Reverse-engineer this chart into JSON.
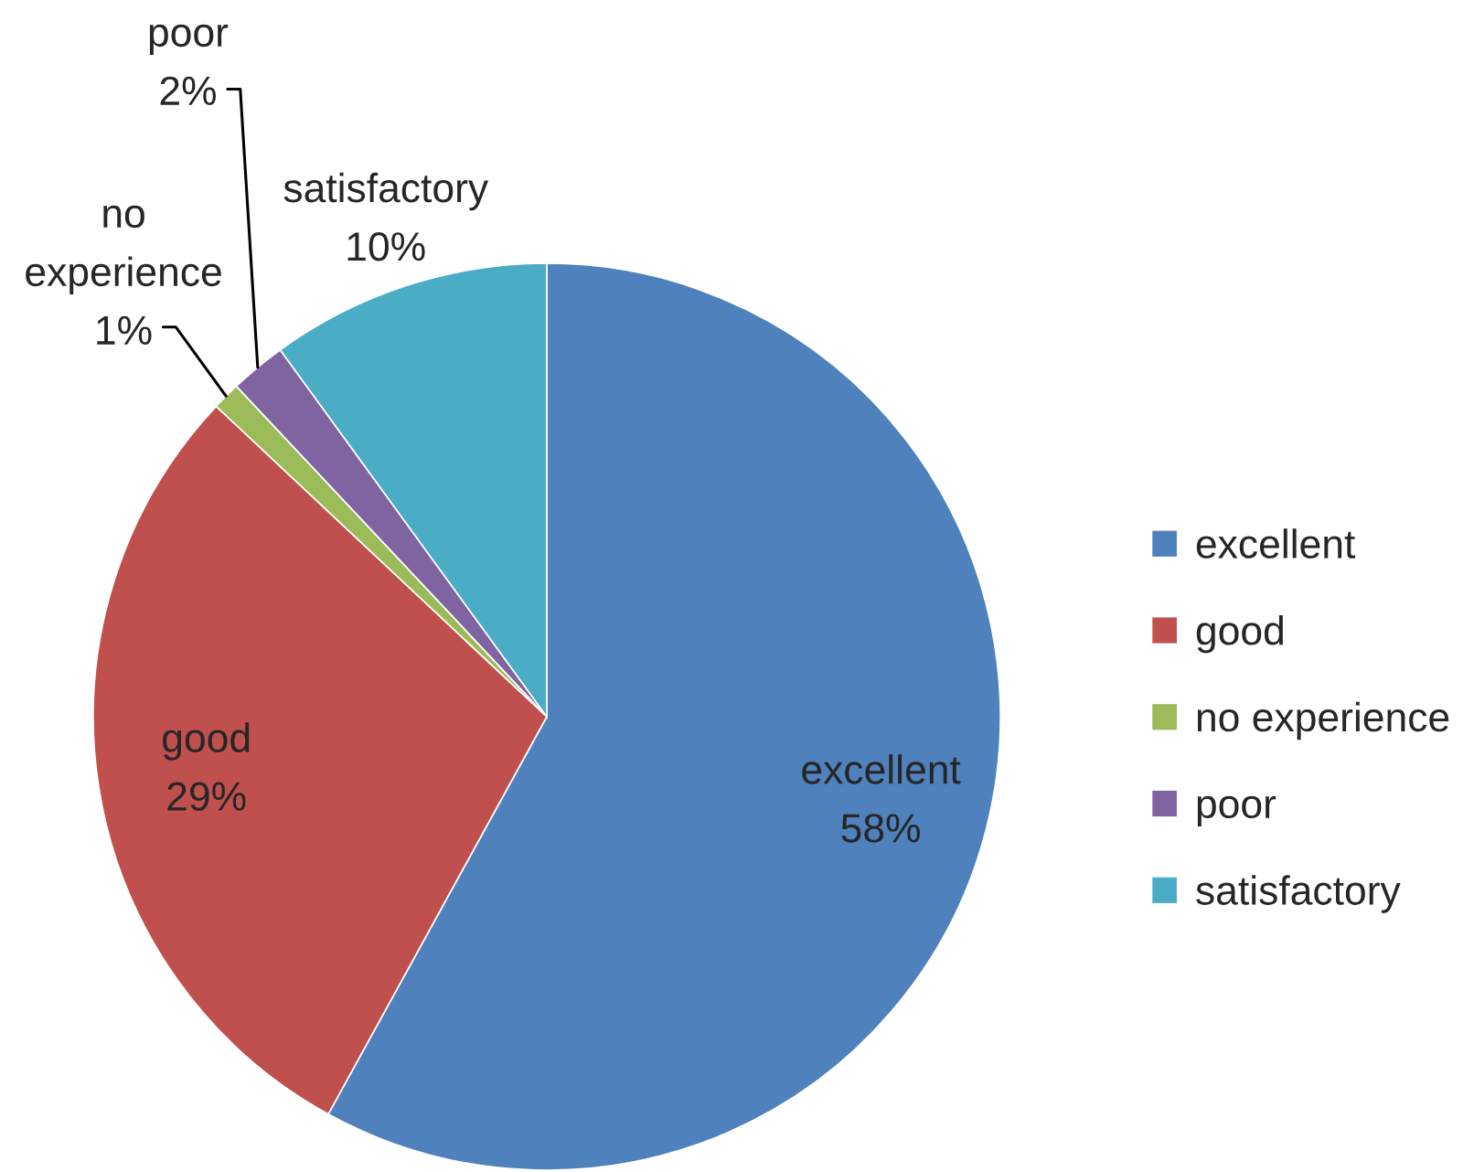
{
  "chart_data": {
    "type": "pie",
    "categories": [
      "excellent",
      "good",
      "no experience",
      "poor",
      "satisfactory"
    ],
    "values": [
      58,
      29,
      1,
      2,
      10
    ],
    "value_labels": [
      "58%",
      "29%",
      "1%",
      "2%",
      "10%"
    ],
    "colors": [
      "#4f81bd",
      "#c0504d",
      "#9bbb59",
      "#8064a2",
      "#4bacc6"
    ],
    "legend": "right"
  }
}
